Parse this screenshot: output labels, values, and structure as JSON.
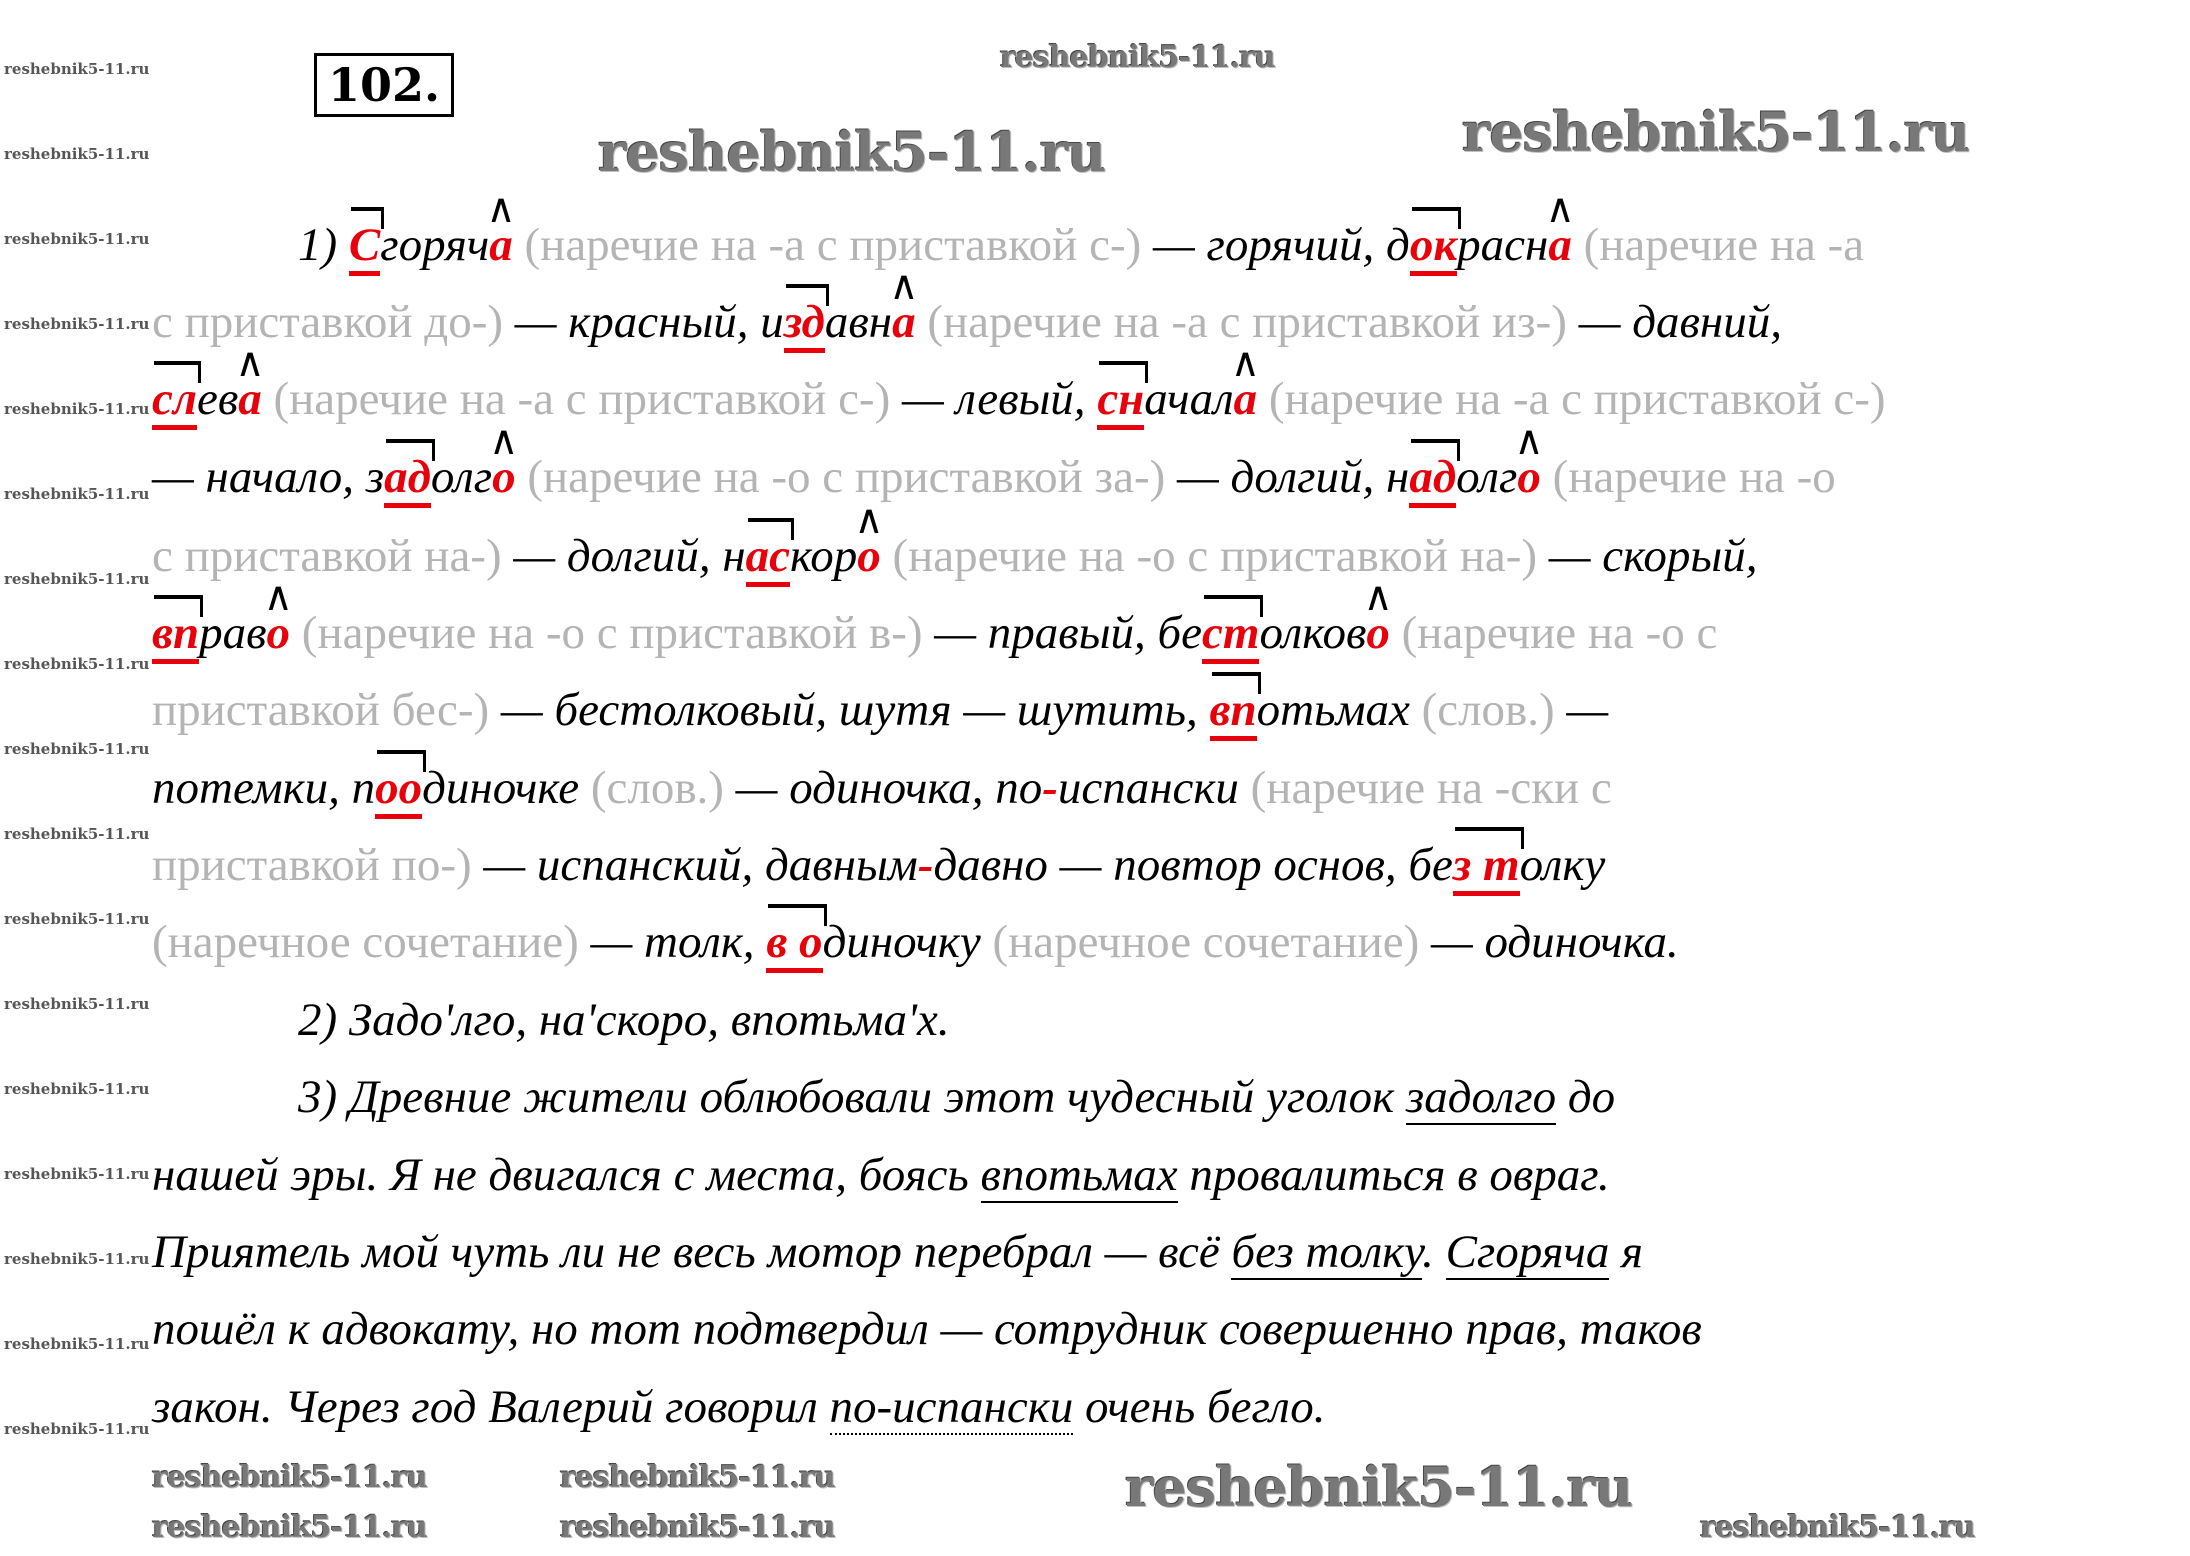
{
  "exercise_number": "102.",
  "watermark": "reshebnik5-11.ru",
  "lines": [
    {
      "indent": true,
      "segments": [
        {
          "t": "1) ",
          "s": "b"
        },
        {
          "t": "С",
          "s": "r"
        },
        {
          "t": "горяч",
          "s": "b"
        },
        {
          "t": "а",
          "s": "e"
        },
        {
          "t": " (наречие на -а с приставкой с-) ",
          "s": "g"
        },
        {
          "t": "— горячий, д",
          "s": "b"
        },
        {
          "t": "ок",
          "s": "r"
        },
        {
          "t": "расн",
          "s": "b"
        },
        {
          "t": "а",
          "s": "e"
        },
        {
          "t": " (наречие на -а",
          "s": "g"
        }
      ]
    },
    {
      "segments": [
        {
          "t": "с приставкой до-) ",
          "s": "g"
        },
        {
          "t": "— красный, и",
          "s": "b"
        },
        {
          "t": "зд",
          "s": "r"
        },
        {
          "t": "авн",
          "s": "b"
        },
        {
          "t": "а",
          "s": "e"
        },
        {
          "t": " (наречие на -а с приставкой из-) ",
          "s": "g"
        },
        {
          "t": "— давний,",
          "s": "b"
        }
      ]
    },
    {
      "segments": [
        {
          "t": "сл",
          "s": "r"
        },
        {
          "t": "ев",
          "s": "b"
        },
        {
          "t": "а",
          "s": "e"
        },
        {
          "t": " (наречие на -а с приставкой с-) ",
          "s": "g"
        },
        {
          "t": "— левый, ",
          "s": "b"
        },
        {
          "t": "сн",
          "s": "r"
        },
        {
          "t": "ачал",
          "s": "b"
        },
        {
          "t": "а",
          "s": "e"
        },
        {
          "t": " (наречие на -а с приставкой с-)",
          "s": "g"
        }
      ]
    },
    {
      "segments": [
        {
          "t": "— начало, з",
          "s": "b"
        },
        {
          "t": "ад",
          "s": "r"
        },
        {
          "t": "олг",
          "s": "b"
        },
        {
          "t": "о",
          "s": "e"
        },
        {
          "t": " (наречие на -о с приставкой за-) ",
          "s": "g"
        },
        {
          "t": "— долгий, н",
          "s": "b"
        },
        {
          "t": "ад",
          "s": "r"
        },
        {
          "t": "олг",
          "s": "b"
        },
        {
          "t": "о",
          "s": "e"
        },
        {
          "t": " (наречие на -о",
          "s": "g"
        }
      ]
    },
    {
      "segments": [
        {
          "t": "с приставкой на-) ",
          "s": "g"
        },
        {
          "t": "— долгий, н",
          "s": "b"
        },
        {
          "t": "ас",
          "s": "r"
        },
        {
          "t": "кор",
          "s": "b"
        },
        {
          "t": "о",
          "s": "e"
        },
        {
          "t": " (наречие на -о с приставкой на-) ",
          "s": "g"
        },
        {
          "t": "— скорый,",
          "s": "b"
        }
      ]
    },
    {
      "segments": [
        {
          "t": "вп",
          "s": "r"
        },
        {
          "t": "рав",
          "s": "b"
        },
        {
          "t": "о",
          "s": "e"
        },
        {
          "t": " (наречие на -о с приставкой в-) ",
          "s": "g"
        },
        {
          "t": "— правый, бе",
          "s": "b"
        },
        {
          "t": "ст",
          "s": "r"
        },
        {
          "t": "олков",
          "s": "b"
        },
        {
          "t": "о",
          "s": "e"
        },
        {
          "t": " (наречие на -о с",
          "s": "g"
        }
      ]
    },
    {
      "segments": [
        {
          "t": "приставкой бес-) ",
          "s": "g"
        },
        {
          "t": "— бестолковый, шутя — шутить, ",
          "s": "b"
        },
        {
          "t": "вп",
          "s": "r"
        },
        {
          "t": "отьмах",
          "s": "b"
        },
        {
          "t": " (слов.) ",
          "s": "g"
        },
        {
          "t": "—",
          "s": "b"
        }
      ]
    },
    {
      "segments": [
        {
          "t": "потемки, п",
          "s": "b"
        },
        {
          "t": "оо",
          "s": "r"
        },
        {
          "t": "диночке",
          "s": "b"
        },
        {
          "t": " (слов.) ",
          "s": "g"
        },
        {
          "t": "— одиночка, по",
          "s": "b"
        },
        {
          "t": "-",
          "s": "d"
        },
        {
          "t": "испански",
          "s": "b"
        },
        {
          "t": " (наречие на -ски с",
          "s": "g"
        }
      ]
    },
    {
      "segments": [
        {
          "t": "приставкой по-) ",
          "s": "g"
        },
        {
          "t": "— испанский, давным",
          "s": "b"
        },
        {
          "t": "-",
          "s": "d"
        },
        {
          "t": "давно — повтор основ, бе",
          "s": "b"
        },
        {
          "t": "з т",
          "s": "r"
        },
        {
          "t": "олку",
          "s": "b"
        }
      ]
    },
    {
      "segments": [
        {
          "t": "(наречное сочетание) ",
          "s": "g"
        },
        {
          "t": "— толк, ",
          "s": "b"
        },
        {
          "t": "в о",
          "s": "r"
        },
        {
          "t": "диночку",
          "s": "b"
        },
        {
          "t": " (наречное сочетание) ",
          "s": "g"
        },
        {
          "t": "— одиночка.",
          "s": "b"
        }
      ]
    },
    {
      "indent": true,
      "segments": [
        {
          "t": "2) Задо'лго, на'скоро, впотьма'х.",
          "s": "b"
        }
      ]
    },
    {
      "indent": true,
      "segments": [
        {
          "t": "3) Древние жители облюбовали этот чудесный уголок ",
          "s": "b"
        },
        {
          "t": "задолго",
          "s": "u"
        },
        {
          "t": " до",
          "s": "b"
        }
      ]
    },
    {
      "segments": [
        {
          "t": "нашей эры. Я не двигался с места, боясь ",
          "s": "b"
        },
        {
          "t": "впотьмах",
          "s": "u"
        },
        {
          "t": " провалиться в овраг.",
          "s": "b"
        }
      ]
    },
    {
      "segments": [
        {
          "t": "Приятель мой чуть ли не весь мотор перебрал — всё ",
          "s": "b"
        },
        {
          "t": "без толку",
          "s": "u"
        },
        {
          "t": ". ",
          "s": "b"
        },
        {
          "t": "Сгоряча",
          "s": "u"
        },
        {
          "t": " я",
          "s": "b"
        }
      ]
    },
    {
      "segments": [
        {
          "t": "пошёл к адвокату, но тот подтвердил — сотрудник совершенно прав, таков",
          "s": "b"
        }
      ]
    },
    {
      "segments": [
        {
          "t": "закон. Через год Валерий говорил ",
          "s": "b"
        },
        {
          "t": "по-испански",
          "s": "ud"
        },
        {
          "t": " очень бегло.",
          "s": "b"
        }
      ]
    }
  ]
}
